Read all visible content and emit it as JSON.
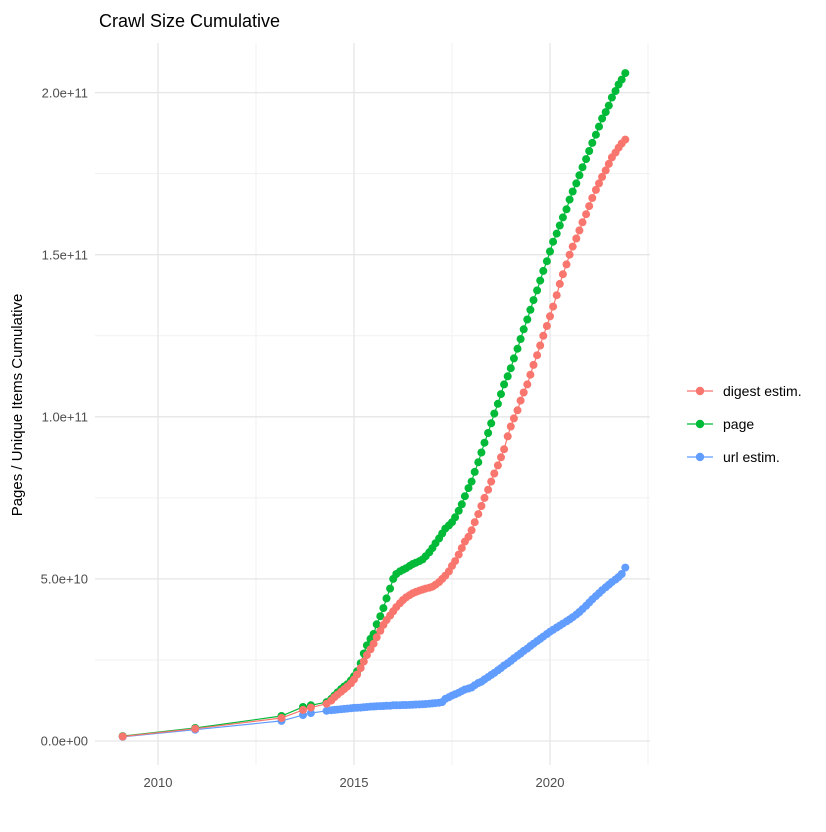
{
  "title": "Crawl Size Cumulative",
  "chart_data": {
    "type": "scatter",
    "title": "Crawl Size Cumulative",
    "xlabel": "",
    "ylabel": "Pages / Unique Items Cumulative",
    "grid": true,
    "legend_position": "right",
    "xlim": [
      2008.4,
      2022.55
    ],
    "ylim_e9": [
      -8,
      215
    ],
    "value_scale": "1e9 (values below are billions of pages / unique items)",
    "x_ticks": [
      {
        "label": "2010",
        "value": 2010
      },
      {
        "label": "2015",
        "value": 2015
      },
      {
        "label": "2020",
        "value": 2020
      }
    ],
    "x_minor_ticks": [
      2012.5,
      2017.5,
      2022.5
    ],
    "y_ticks": [
      {
        "label": "0.0e+00",
        "value": 0
      },
      {
        "label": "5.0e+10",
        "value": 50
      },
      {
        "label": "1.0e+11",
        "value": 100
      },
      {
        "label": "1.5e+11",
        "value": 150
      },
      {
        "label": "2.0e+11",
        "value": 200
      }
    ],
    "y_minor_ticks": [
      25,
      75,
      125,
      175
    ],
    "series": [
      {
        "name": "digest estim.",
        "color": "#F8766D",
        "points": [
          [
            2009.1,
            1.4
          ],
          [
            2010.95,
            3.8
          ],
          [
            2013.15,
            7.1
          ],
          [
            2013.7,
            9.6
          ],
          [
            2013.9,
            10.3
          ],
          [
            2014.3,
            11.5
          ],
          [
            2014.42,
            12.5
          ],
          [
            2014.5,
            13.5
          ],
          [
            2014.58,
            14.3
          ],
          [
            2014.67,
            15.2
          ],
          [
            2014.75,
            16.0
          ],
          [
            2014.83,
            16.8
          ],
          [
            2014.92,
            17.8
          ],
          [
            2015.0,
            19.0
          ],
          [
            2015.08,
            20.5
          ],
          [
            2015.17,
            22.5
          ],
          [
            2015.25,
            24.5
          ],
          [
            2015.33,
            26.5
          ],
          [
            2015.42,
            28.3
          ],
          [
            2015.5,
            30.0
          ],
          [
            2015.58,
            32.0
          ],
          [
            2015.67,
            34.0
          ],
          [
            2015.75,
            35.8
          ],
          [
            2015.83,
            37.3
          ],
          [
            2015.92,
            38.7
          ],
          [
            2016.0,
            40.0
          ],
          [
            2016.08,
            41.3
          ],
          [
            2016.17,
            42.5
          ],
          [
            2016.25,
            43.5
          ],
          [
            2016.33,
            44.3
          ],
          [
            2016.42,
            45.0
          ],
          [
            2016.5,
            45.6
          ],
          [
            2016.58,
            46.0
          ],
          [
            2016.67,
            46.4
          ],
          [
            2016.75,
            46.7
          ],
          [
            2016.83,
            47.0
          ],
          [
            2016.92,
            47.3
          ],
          [
            2017.0,
            47.6
          ],
          [
            2017.08,
            48.2
          ],
          [
            2017.17,
            49.0
          ],
          [
            2017.25,
            50.0
          ],
          [
            2017.33,
            51.0
          ],
          [
            2017.42,
            52.3
          ],
          [
            2017.5,
            54.0
          ],
          [
            2017.58,
            55.5
          ],
          [
            2017.67,
            57.5
          ],
          [
            2017.75,
            59.5
          ],
          [
            2017.83,
            61.5
          ],
          [
            2017.92,
            63.0
          ],
          [
            2018.0,
            65.0
          ],
          [
            2018.08,
            67.5
          ],
          [
            2018.17,
            70.0
          ],
          [
            2018.25,
            72.5
          ],
          [
            2018.33,
            75.0
          ],
          [
            2018.42,
            77.5
          ],
          [
            2018.5,
            80.0
          ],
          [
            2018.58,
            82.5
          ],
          [
            2018.67,
            85.0
          ],
          [
            2018.75,
            87.5
          ],
          [
            2018.83,
            90.0
          ],
          [
            2018.92,
            94.0
          ],
          [
            2019.0,
            97.0
          ],
          [
            2019.08,
            99.5
          ],
          [
            2019.17,
            102.0
          ],
          [
            2019.25,
            105.0
          ],
          [
            2019.33,
            107.5
          ],
          [
            2019.42,
            110.0
          ],
          [
            2019.5,
            113.0
          ],
          [
            2019.58,
            116.0
          ],
          [
            2019.67,
            119.0
          ],
          [
            2019.75,
            122.0
          ],
          [
            2019.83,
            125.0
          ],
          [
            2019.92,
            128.0
          ],
          [
            2020.0,
            131.0
          ],
          [
            2020.08,
            134.0
          ],
          [
            2020.17,
            137.5
          ],
          [
            2020.25,
            141.0
          ],
          [
            2020.33,
            144.0
          ],
          [
            2020.42,
            147.0
          ],
          [
            2020.5,
            150.0
          ],
          [
            2020.58,
            152.5
          ],
          [
            2020.67,
            155.0
          ],
          [
            2020.75,
            157.5
          ],
          [
            2020.83,
            160.0
          ],
          [
            2020.92,
            162.5
          ],
          [
            2021.0,
            165.0
          ],
          [
            2021.08,
            167.5
          ],
          [
            2021.17,
            170.0
          ],
          [
            2021.25,
            172.0
          ],
          [
            2021.33,
            174.0
          ],
          [
            2021.42,
            176.0
          ],
          [
            2021.5,
            178.0
          ],
          [
            2021.58,
            180.0
          ],
          [
            2021.67,
            181.5
          ],
          [
            2021.75,
            183.0
          ],
          [
            2021.83,
            184.3
          ],
          [
            2021.92,
            185.5
          ]
        ]
      },
      {
        "name": "page",
        "color": "#00BA38",
        "points": [
          [
            2009.1,
            1.5
          ],
          [
            2010.95,
            4.0
          ],
          [
            2013.15,
            7.7
          ],
          [
            2013.7,
            10.5
          ],
          [
            2013.9,
            11.0
          ],
          [
            2014.3,
            12.0
          ],
          [
            2014.42,
            13.0
          ],
          [
            2014.5,
            14.0
          ],
          [
            2014.58,
            15.0
          ],
          [
            2014.67,
            16.0
          ],
          [
            2014.75,
            16.8
          ],
          [
            2014.83,
            17.5
          ],
          [
            2014.92,
            18.7
          ],
          [
            2015.0,
            20.0
          ],
          [
            2015.08,
            21.5
          ],
          [
            2015.17,
            24.0
          ],
          [
            2015.25,
            27.0
          ],
          [
            2015.33,
            29.5
          ],
          [
            2015.42,
            31.5
          ],
          [
            2015.5,
            33.0
          ],
          [
            2015.58,
            36.0
          ],
          [
            2015.67,
            38.5
          ],
          [
            2015.75,
            41.0
          ],
          [
            2015.83,
            44.0
          ],
          [
            2015.92,
            47.0
          ],
          [
            2016.0,
            50.0
          ],
          [
            2016.08,
            51.5
          ],
          [
            2016.17,
            52.3
          ],
          [
            2016.25,
            52.8
          ],
          [
            2016.33,
            53.3
          ],
          [
            2016.42,
            54.0
          ],
          [
            2016.5,
            54.6
          ],
          [
            2016.58,
            55.0
          ],
          [
            2016.67,
            55.5
          ],
          [
            2016.75,
            56.0
          ],
          [
            2016.83,
            57.0
          ],
          [
            2016.92,
            58.2
          ],
          [
            2017.0,
            59.5
          ],
          [
            2017.08,
            61.0
          ],
          [
            2017.17,
            62.5
          ],
          [
            2017.25,
            64.0
          ],
          [
            2017.33,
            65.5
          ],
          [
            2017.42,
            66.5
          ],
          [
            2017.5,
            67.5
          ],
          [
            2017.58,
            69.0
          ],
          [
            2017.67,
            71.0
          ],
          [
            2017.75,
            73.0
          ],
          [
            2017.83,
            75.5
          ],
          [
            2017.92,
            78.0
          ],
          [
            2018.0,
            80.0
          ],
          [
            2018.08,
            83.0
          ],
          [
            2018.17,
            86.0
          ],
          [
            2018.25,
            89.0
          ],
          [
            2018.33,
            92.0
          ],
          [
            2018.42,
            95.0
          ],
          [
            2018.5,
            98.0
          ],
          [
            2018.58,
            101.0
          ],
          [
            2018.67,
            104.0
          ],
          [
            2018.75,
            107.0
          ],
          [
            2018.83,
            110.0
          ],
          [
            2018.92,
            112.5
          ],
          [
            2019.0,
            115.0
          ],
          [
            2019.08,
            118.0
          ],
          [
            2019.17,
            121.0
          ],
          [
            2019.25,
            124.0
          ],
          [
            2019.33,
            127.0
          ],
          [
            2019.42,
            130.0
          ],
          [
            2019.5,
            133.0
          ],
          [
            2019.58,
            136.0
          ],
          [
            2019.67,
            139.0
          ],
          [
            2019.75,
            142.0
          ],
          [
            2019.83,
            145.0
          ],
          [
            2019.92,
            148.0
          ],
          [
            2020.0,
            151.0
          ],
          [
            2020.08,
            154.0
          ],
          [
            2020.17,
            156.5
          ],
          [
            2020.25,
            159.0
          ],
          [
            2020.33,
            161.5
          ],
          [
            2020.42,
            164.0
          ],
          [
            2020.5,
            167.0
          ],
          [
            2020.58,
            169.5
          ],
          [
            2020.67,
            172.0
          ],
          [
            2020.75,
            174.5
          ],
          [
            2020.83,
            177.0
          ],
          [
            2020.92,
            179.5
          ],
          [
            2021.0,
            182.0
          ],
          [
            2021.08,
            184.5
          ],
          [
            2021.17,
            187.0
          ],
          [
            2021.25,
            189.5
          ],
          [
            2021.33,
            192.0
          ],
          [
            2021.42,
            194.0
          ],
          [
            2021.5,
            196.0
          ],
          [
            2021.58,
            198.5
          ],
          [
            2021.67,
            200.5
          ],
          [
            2021.75,
            202.5
          ],
          [
            2021.83,
            204.0
          ],
          [
            2021.92,
            206.0
          ]
        ]
      },
      {
        "name": "url estim.",
        "color": "#619CFF",
        "points": [
          [
            2009.1,
            1.3
          ],
          [
            2010.95,
            3.5
          ],
          [
            2013.15,
            6.2
          ],
          [
            2013.7,
            8.0
          ],
          [
            2013.9,
            8.6
          ],
          [
            2014.3,
            9.3
          ],
          [
            2014.42,
            9.5
          ],
          [
            2014.5,
            9.6
          ],
          [
            2014.58,
            9.7
          ],
          [
            2014.67,
            9.8
          ],
          [
            2014.75,
            9.9
          ],
          [
            2014.83,
            10.0
          ],
          [
            2014.92,
            10.1
          ],
          [
            2015.0,
            10.2
          ],
          [
            2015.08,
            10.25
          ],
          [
            2015.17,
            10.3
          ],
          [
            2015.25,
            10.4
          ],
          [
            2015.33,
            10.5
          ],
          [
            2015.42,
            10.6
          ],
          [
            2015.5,
            10.65
          ],
          [
            2015.58,
            10.7
          ],
          [
            2015.67,
            10.75
          ],
          [
            2015.75,
            10.8
          ],
          [
            2015.83,
            10.85
          ],
          [
            2015.92,
            10.9
          ],
          [
            2016.0,
            11.0
          ],
          [
            2016.08,
            11.0
          ],
          [
            2016.17,
            11.05
          ],
          [
            2016.25,
            11.1
          ],
          [
            2016.33,
            11.1
          ],
          [
            2016.42,
            11.15
          ],
          [
            2016.5,
            11.2
          ],
          [
            2016.58,
            11.25
          ],
          [
            2016.67,
            11.3
          ],
          [
            2016.75,
            11.35
          ],
          [
            2016.83,
            11.4
          ],
          [
            2016.92,
            11.5
          ],
          [
            2017.0,
            11.6
          ],
          [
            2017.08,
            11.7
          ],
          [
            2017.17,
            11.8
          ],
          [
            2017.25,
            12.0
          ],
          [
            2017.33,
            13.0
          ],
          [
            2017.42,
            13.5
          ],
          [
            2017.5,
            14.0
          ],
          [
            2017.58,
            14.4
          ],
          [
            2017.67,
            14.9
          ],
          [
            2017.75,
            15.4
          ],
          [
            2017.83,
            15.9
          ],
          [
            2017.92,
            16.2
          ],
          [
            2018.0,
            16.5
          ],
          [
            2018.08,
            17.2
          ],
          [
            2018.17,
            17.9
          ],
          [
            2018.25,
            18.3
          ],
          [
            2018.33,
            19.0
          ],
          [
            2018.42,
            19.7
          ],
          [
            2018.5,
            20.4
          ],
          [
            2018.58,
            21.0
          ],
          [
            2018.67,
            21.8
          ],
          [
            2018.75,
            22.5
          ],
          [
            2018.83,
            23.3
          ],
          [
            2018.92,
            24.0
          ],
          [
            2019.0,
            24.7
          ],
          [
            2019.08,
            25.5
          ],
          [
            2019.17,
            26.3
          ],
          [
            2019.25,
            27.0
          ],
          [
            2019.33,
            27.8
          ],
          [
            2019.42,
            28.5
          ],
          [
            2019.5,
            29.3
          ],
          [
            2019.58,
            30.0
          ],
          [
            2019.67,
            30.8
          ],
          [
            2019.75,
            31.5
          ],
          [
            2019.83,
            32.2
          ],
          [
            2019.92,
            33.0
          ],
          [
            2020.0,
            33.7
          ],
          [
            2020.08,
            34.3
          ],
          [
            2020.17,
            35.0
          ],
          [
            2020.25,
            35.6
          ],
          [
            2020.33,
            36.2
          ],
          [
            2020.42,
            36.9
          ],
          [
            2020.5,
            37.5
          ],
          [
            2020.58,
            38.2
          ],
          [
            2020.67,
            39.0
          ],
          [
            2020.75,
            39.8
          ],
          [
            2020.83,
            40.7
          ],
          [
            2020.92,
            41.7
          ],
          [
            2021.0,
            42.7
          ],
          [
            2021.08,
            43.7
          ],
          [
            2021.17,
            44.7
          ],
          [
            2021.25,
            45.6
          ],
          [
            2021.33,
            46.5
          ],
          [
            2021.42,
            47.4
          ],
          [
            2021.5,
            48.2
          ],
          [
            2021.58,
            49.0
          ],
          [
            2021.67,
            49.8
          ],
          [
            2021.75,
            50.6
          ],
          [
            2021.83,
            51.5
          ],
          [
            2021.92,
            53.5
          ]
        ]
      }
    ]
  }
}
